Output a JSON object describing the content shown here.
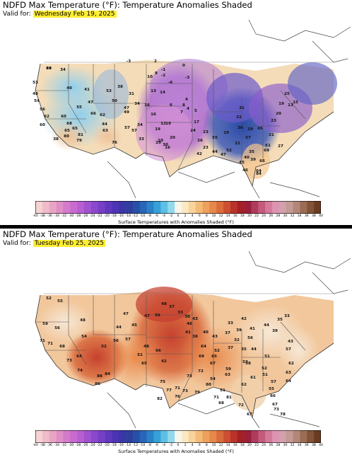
{
  "colorbar": {
    "ticks": [
      "-40",
      "-38",
      "-36",
      "-34",
      "-32",
      "-30",
      "-28",
      "-26",
      "-24",
      "-22",
      "-20",
      "-18",
      "-16",
      "-14",
      "-12",
      "-10",
      "-8",
      "-6",
      "-4",
      "-2",
      "0",
      "2",
      "4",
      "6",
      "8",
      "10",
      "12",
      "14",
      "16",
      "18",
      "20",
      "22",
      "24",
      "26",
      "28",
      "30",
      "32",
      "34",
      "36",
      "38",
      "40"
    ],
    "colors": [
      "#f6d3d3",
      "#f0bcc9",
      "#e9a4c4",
      "#e08ec6",
      "#d47aca",
      "#c86ace",
      "#b75ed1",
      "#a152d0",
      "#8c48cc",
      "#7640c6",
      "#6038be",
      "#4c34b4",
      "#3a36a8",
      "#2e3f9e",
      "#2850a6",
      "#2766b8",
      "#2b82c8",
      "#38a0d8",
      "#5dbfe4",
      "#93d9ee",
      "#f6f6ea",
      "#fce9c4",
      "#f8d39a",
      "#f3bb78",
      "#eda15d",
      "#e5884a",
      "#da6c3c",
      "#cc4f31",
      "#bb3228",
      "#a51f26",
      "#9b1f3a",
      "#b03c5c",
      "#c45b7c",
      "#d4799a",
      "#dc94b0",
      "#d3a0ad",
      "#c39a94",
      "#b2877a",
      "#9c6c56",
      "#835238",
      "#6a3b20"
    ],
    "caption": "Surface Temperatures with Anomalies Shaded (°F)"
  },
  "panels": [
    {
      "title": "NDFD Max Temperature (°F): Temperature Anomalies Shaded",
      "valid_prefix": "Valid for:",
      "valid_date": "Wednesday Feb 19, 2025",
      "labels": [
        "30",
        "34",
        "53",
        "48",
        "54",
        "56",
        "62",
        "60",
        "40",
        "41",
        "47",
        "55",
        "60",
        "68",
        "65",
        "65",
        "38",
        "80",
        "81",
        "79",
        "66",
        "62",
        "63",
        "50",
        "47",
        "76",
        "44",
        "49",
        "57",
        "38",
        "53",
        "57",
        "31",
        "34",
        "34",
        "33",
        "16",
        "16",
        "19",
        "12",
        "10",
        "16",
        "19",
        "20",
        "29",
        "30",
        "13",
        "14",
        "10",
        "9",
        "-1",
        "-2",
        "-3",
        "2",
        "-6",
        "0",
        "-3",
        "6",
        "8",
        "7",
        "4",
        "5",
        "4",
        "17",
        "24",
        "23",
        "26",
        "23",
        "42",
        "44",
        "47",
        "52",
        "57",
        "55",
        "19",
        "21",
        "36",
        "32",
        "31",
        "29",
        "35",
        "39",
        "40",
        "45",
        "46",
        "64",
        "66",
        "69",
        "84",
        "61",
        "45",
        "23",
        "20",
        "19",
        "25",
        "13",
        "15",
        "21",
        "27",
        "44"
      ]
    },
    {
      "title": "NDFD Max Temperature (°F): Temperature Anomalies Shaded",
      "valid_prefix": "Valid for:",
      "valid_date": "Tuesday Feb 25, 2025",
      "labels": [
        "52",
        "55",
        "59",
        "56",
        "71",
        "71",
        "68",
        "64",
        "73",
        "74",
        "84",
        "86",
        "88",
        "54",
        "48",
        "52",
        "56",
        "57",
        "47",
        "44",
        "45",
        "47",
        "48",
        "51",
        "65",
        "66",
        "42",
        "56",
        "48",
        "37",
        "33",
        "38",
        "43",
        "46",
        "41",
        "38",
        "40",
        "43",
        "52",
        "37",
        "32",
        "35",
        "44",
        "51",
        "52",
        "51",
        "57",
        "55",
        "58",
        "61",
        "62",
        "63",
        "67",
        "72",
        "73",
        "71",
        "75",
        "82",
        "77",
        "76",
        "73",
        "79",
        "80",
        "81",
        "72",
        "67",
        "68",
        "71",
        "69",
        "64",
        "65",
        "54",
        "51",
        "59",
        "53",
        "56",
        "41",
        "37",
        "33",
        "39",
        "42",
        "44",
        "39",
        "35",
        "33",
        "43",
        "57",
        "62",
        "63",
        "64",
        "66",
        "67",
        "73",
        "78"
      ]
    }
  ]
}
